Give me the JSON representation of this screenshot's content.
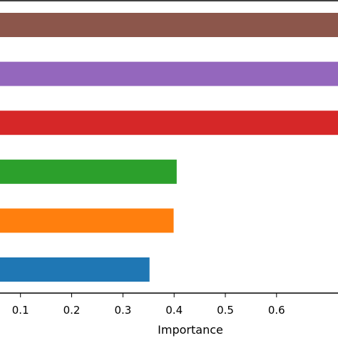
{
  "chart_data": {
    "type": "bar",
    "orientation": "horizontal",
    "xlabel": "Importance",
    "ylabel": "",
    "title": "",
    "xlim": [
      0.06,
      0.72
    ],
    "xticks": [
      0.1,
      0.2,
      0.3,
      0.4,
      0.5,
      0.6
    ],
    "xtick_labels": [
      "0.1",
      "0.2",
      "0.3",
      "0.4",
      "0.5",
      "0.6"
    ],
    "grid": false,
    "bars": [
      {
        "value": 0.72,
        "color": "#8c564b"
      },
      {
        "value": 0.72,
        "color": "#9467bd"
      },
      {
        "value": 0.72,
        "color": "#d62728"
      },
      {
        "value": 0.405,
        "color": "#2ca02c"
      },
      {
        "value": 0.399,
        "color": "#ff7f0e"
      },
      {
        "value": 0.352,
        "color": "#1f77b4"
      }
    ]
  }
}
